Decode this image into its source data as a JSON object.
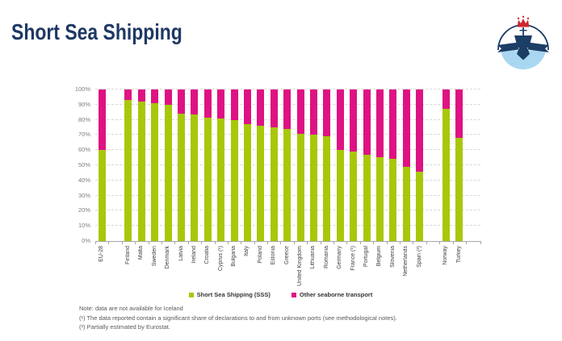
{
  "slide": {
    "title": "Short Sea Shipping"
  },
  "logo": {
    "description": "circular maritime emblem: navy ship with crown over light-blue sea",
    "navy": "#1C3E66",
    "light_blue": "#A9D7F1",
    "red": "#CE2430"
  },
  "notes": [
    "Note: data are not available for Iceland",
    "(¹) The data reported contain a significant share of declarations to and from unknown ports (see methodological notes).",
    "(²) Partially estimated by Eurostat."
  ],
  "chart_data": {
    "type": "bar",
    "subtype": "100%-stacked-columns",
    "unit": "percent",
    "title": "",
    "xlabel": "",
    "ylabel": "",
    "ylim": [
      0,
      100
    ],
    "ytick_labels": [
      "0%",
      "10%",
      "20%",
      "30%",
      "40%",
      "50%",
      "60%",
      "70%",
      "80%",
      "90%",
      "100%"
    ],
    "grid": "horizontal-dashed",
    "legend_position": "bottom-center",
    "categories": [
      "EU-28",
      "Finland",
      "Malta",
      "Sweden",
      "Denmark",
      "Latvia",
      "Ireland",
      "Croatia",
      "Cyprus (¹)",
      "Bulgaria",
      "Italy",
      "Poland",
      "Estonia",
      "Greece",
      "United Kingdom",
      "Lithuania",
      "Romania",
      "Germany",
      "France (¹)",
      "Portugal",
      "Belgium",
      "Slovenia",
      "Netherlands",
      "Spain (²)",
      "Norway",
      "Turkey"
    ],
    "separators_after_categories": [
      "EU-28",
      "Spain (²)"
    ],
    "series": [
      {
        "name": "Short Sea Shipping (SSS)",
        "color": "#A9C709",
        "values": [
          60,
          93,
          92,
          91,
          90,
          84,
          83.5,
          81.5,
          81,
          80,
          77,
          76,
          75,
          74,
          71,
          70,
          69,
          60,
          59,
          57,
          55.5,
          54,
          49,
          46,
          87,
          68
        ]
      },
      {
        "name": "Other seaborne transport",
        "color": "#DE1283",
        "values": [
          40,
          7,
          8,
          9,
          10,
          16,
          16.5,
          18.5,
          19,
          20,
          23,
          24,
          25,
          26,
          29,
          30,
          31,
          40,
          41,
          43,
          44.5,
          46,
          51,
          54,
          13,
          32
        ]
      }
    ]
  }
}
